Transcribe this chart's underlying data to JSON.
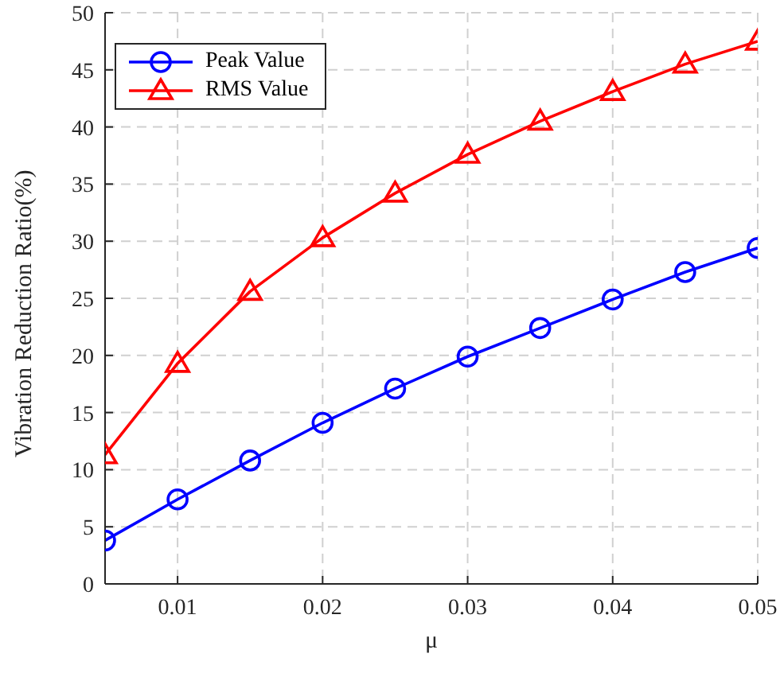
{
  "chart_data": {
    "type": "line",
    "xlabel": "μ",
    "ylabel": "Vibration Reduction Ratio(%)",
    "x": [
      0.005,
      0.01,
      0.015,
      0.02,
      0.025,
      0.03,
      0.035,
      0.04,
      0.045,
      0.05
    ],
    "series": [
      {
        "name": "Peak Value",
        "color": "#0000ff",
        "marker": "circle",
        "values": [
          3.8,
          7.4,
          10.8,
          14.1,
          17.1,
          19.9,
          22.4,
          24.9,
          27.3,
          29.4
        ]
      },
      {
        "name": "RMS Value",
        "color": "#ff0000",
        "marker": "triangle",
        "values": [
          11.3,
          19.3,
          25.6,
          30.3,
          34.2,
          37.6,
          40.5,
          43.1,
          45.5,
          47.5
        ]
      }
    ],
    "xlim": [
      0.005,
      0.05
    ],
    "xticks": [
      0.01,
      0.02,
      0.03,
      0.04,
      0.05
    ],
    "ylim": [
      0,
      50
    ],
    "yticks": [
      0,
      5,
      10,
      15,
      20,
      25,
      30,
      35,
      40,
      45,
      50
    ],
    "grid": true,
    "legend": "top left",
    "line_style": "solid"
  }
}
